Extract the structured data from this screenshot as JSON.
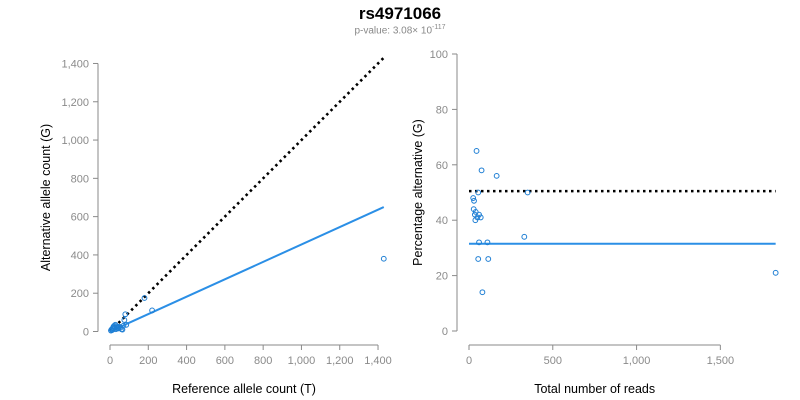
{
  "header": {
    "title": "rs4971066",
    "pvalue_prefix": "p-value: 3.08× 10",
    "pvalue_exponent": "-117"
  },
  "colors": {
    "points": "#1f7fd4",
    "fit_line": "#2b8fe6",
    "expected_line": "#000000",
    "axis": "#8a8a8a"
  },
  "chart_data": [
    {
      "type": "scatter",
      "title": "",
      "xlabel": "Reference allele count (T)",
      "ylabel": "Alternative allele count (G)",
      "xlim": [
        0,
        1450
      ],
      "ylim": [
        0,
        1450
      ],
      "x_ticks": [
        0,
        200,
        400,
        600,
        800,
        1000,
        1200,
        1400
      ],
      "x_tick_labels": [
        "0",
        "200",
        "400",
        "600",
        "800",
        "1,000",
        "1,200",
        "1,400"
      ],
      "y_ticks": [
        0,
        200,
        400,
        600,
        800,
        1000,
        1200,
        1400
      ],
      "y_tick_labels": [
        "0",
        "200",
        "400",
        "600",
        "800",
        "1,000",
        "1,200",
        "1,400"
      ],
      "points": [
        {
          "x": 5,
          "y": 5
        },
        {
          "x": 8,
          "y": 10
        },
        {
          "x": 12,
          "y": 8
        },
        {
          "x": 15,
          "y": 18
        },
        {
          "x": 18,
          "y": 25
        },
        {
          "x": 20,
          "y": 15
        },
        {
          "x": 22,
          "y": 30
        },
        {
          "x": 25,
          "y": 20
        },
        {
          "x": 28,
          "y": 35
        },
        {
          "x": 30,
          "y": 12
        },
        {
          "x": 35,
          "y": 28
        },
        {
          "x": 38,
          "y": 22
        },
        {
          "x": 40,
          "y": 15
        },
        {
          "x": 45,
          "y": 18
        },
        {
          "x": 50,
          "y": 25
        },
        {
          "x": 55,
          "y": 20
        },
        {
          "x": 60,
          "y": 12
        },
        {
          "x": 65,
          "y": 10
        },
        {
          "x": 70,
          "y": 30
        },
        {
          "x": 75,
          "y": 60
        },
        {
          "x": 80,
          "y": 90
        },
        {
          "x": 85,
          "y": 35
        },
        {
          "x": 180,
          "y": 175
        },
        {
          "x": 220,
          "y": 110
        },
        {
          "x": 1430,
          "y": 380
        }
      ],
      "lines": [
        {
          "style": "dotted",
          "color_key": "expected_line",
          "x": [
            0,
            1430
          ],
          "y": [
            0,
            1430
          ]
        },
        {
          "style": "solid",
          "color_key": "fit_line",
          "x": [
            0,
            1430
          ],
          "y": [
            0,
            650
          ]
        }
      ]
    },
    {
      "type": "scatter",
      "title": "",
      "xlabel": "Total number of reads",
      "ylabel": "Percentage alternative (G)",
      "xlim": [
        0,
        1850
      ],
      "ylim": [
        0,
        100
      ],
      "x_ticks": [
        0,
        500,
        1000,
        1500
      ],
      "x_tick_labels": [
        "0",
        "500",
        "1,000",
        "1,500"
      ],
      "y_ticks": [
        0,
        20,
        40,
        60,
        80,
        100
      ],
      "y_tick_labels": [
        "0",
        "20",
        "40",
        "60",
        "80",
        "100"
      ],
      "points": [
        {
          "x": 45,
          "y": 65
        },
        {
          "x": 75,
          "y": 58
        },
        {
          "x": 165,
          "y": 56
        },
        {
          "x": 55,
          "y": 50
        },
        {
          "x": 350,
          "y": 50
        },
        {
          "x": 25,
          "y": 48
        },
        {
          "x": 30,
          "y": 47
        },
        {
          "x": 28,
          "y": 44
        },
        {
          "x": 40,
          "y": 43
        },
        {
          "x": 35,
          "y": 42
        },
        {
          "x": 50,
          "y": 41
        },
        {
          "x": 60,
          "y": 42
        },
        {
          "x": 70,
          "y": 41
        },
        {
          "x": 38,
          "y": 40
        },
        {
          "x": 330,
          "y": 34
        },
        {
          "x": 60,
          "y": 32
        },
        {
          "x": 110,
          "y": 32
        },
        {
          "x": 55,
          "y": 26
        },
        {
          "x": 115,
          "y": 26
        },
        {
          "x": 80,
          "y": 14
        },
        {
          "x": 1830,
          "y": 21
        }
      ],
      "lines": [
        {
          "style": "dotted",
          "color_key": "expected_line",
          "x": [
            0,
            1830
          ],
          "y": [
            50.5,
            50.5
          ]
        },
        {
          "style": "solid",
          "color_key": "fit_line",
          "x": [
            0,
            1830
          ],
          "y": [
            31.5,
            31.5
          ]
        }
      ]
    }
  ]
}
